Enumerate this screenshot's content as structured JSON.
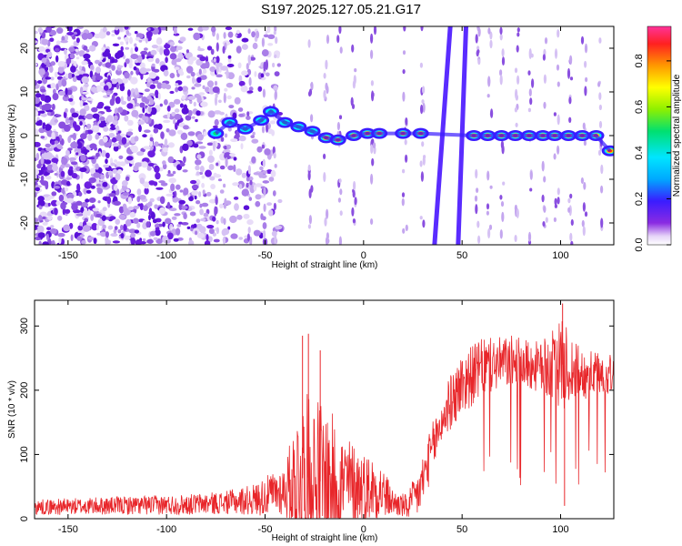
{
  "title": "S197.2025.127.05.21.G17",
  "colors": {
    "snr_line": "#e8262a",
    "background": "#ffffff",
    "axis": "#000000"
  },
  "chart_data": [
    {
      "type": "heatmap",
      "xlabel": "Height of straight line (km)",
      "ylabel": "Frequency (Hz)",
      "xlim": [
        -167,
        127
      ],
      "ylim": [
        -25,
        25
      ],
      "x_ticks": [
        "-150",
        "-100",
        "-50",
        "0",
        "50",
        "100"
      ],
      "y_ticks": [
        "-20",
        "-10",
        "0",
        "10",
        "20"
      ],
      "colorbar": {
        "label": "Normalized spectral amplitude",
        "range": [
          0,
          0.95
        ],
        "ticks": [
          "0.0",
          "0.2",
          "0.4",
          "0.6",
          "0.8"
        ],
        "colormap": "rainbow"
      },
      "main_ridge": [
        {
          "x": -75,
          "f": 0.5
        },
        {
          "x": -68,
          "f": 3
        },
        {
          "x": -60,
          "f": 1.5
        },
        {
          "x": -52,
          "f": 3.5
        },
        {
          "x": -47,
          "f": 5.5
        },
        {
          "x": -40,
          "f": 3
        },
        {
          "x": -33,
          "f": 2
        },
        {
          "x": -26,
          "f": 1
        },
        {
          "x": -19,
          "f": -0.5
        },
        {
          "x": -13,
          "f": -1
        },
        {
          "x": -5,
          "f": 0
        },
        {
          "x": 2,
          "f": 0.5
        },
        {
          "x": 8,
          "f": 0.5
        },
        {
          "x": 20,
          "f": 0.5
        },
        {
          "x": 29,
          "f": 0.5
        },
        {
          "x": 56,
          "f": 0
        },
        {
          "x": 63,
          "f": 0
        },
        {
          "x": 70,
          "f": 0
        },
        {
          "x": 77,
          "f": 0
        },
        {
          "x": 84,
          "f": 0
        },
        {
          "x": 91,
          "f": 0
        },
        {
          "x": 97,
          "f": 0
        },
        {
          "x": 104,
          "f": 0
        },
        {
          "x": 111,
          "f": 0
        },
        {
          "x": 118,
          "f": 0
        },
        {
          "x": 125,
          "f": -3.5
        }
      ],
      "diagonal_streaks": [
        {
          "from": [
            36,
            -25
          ],
          "to": [
            44,
            25
          ]
        },
        {
          "from": [
            48,
            -25
          ],
          "to": [
            52,
            25
          ]
        }
      ]
    },
    {
      "type": "line",
      "xlabel": "Height of straight line (km)",
      "ylabel": "SNR (10 * v/v)",
      "xlim": [
        -167,
        127
      ],
      "ylim": [
        0,
        340
      ],
      "x_ticks": [
        "-150",
        "-100",
        "-50",
        "0",
        "50",
        "100"
      ],
      "y_ticks": [
        "0",
        "100",
        "200",
        "300"
      ],
      "series": [
        {
          "envelope": [
            {
              "x": -167,
              "base": 18,
              "amp": 12
            },
            {
              "x": -130,
              "base": 20,
              "amp": 14
            },
            {
              "x": -90,
              "base": 22,
              "amp": 16
            },
            {
              "x": -70,
              "base": 25,
              "amp": 18
            },
            {
              "x": -55,
              "base": 30,
              "amp": 25
            },
            {
              "x": -40,
              "base": 45,
              "amp": 40
            },
            {
              "x": -32,
              "base": 70,
              "amp": 120
            },
            {
              "x": -25,
              "base": 60,
              "amp": 140
            },
            {
              "x": -18,
              "base": 55,
              "amp": 120
            },
            {
              "x": -10,
              "base": 55,
              "amp": 80
            },
            {
              "x": 0,
              "base": 50,
              "amp": 55
            },
            {
              "x": 8,
              "base": 45,
              "amp": 50
            },
            {
              "x": 15,
              "base": 25,
              "amp": 20
            },
            {
              "x": 22,
              "base": 18,
              "amp": 20
            },
            {
              "x": 28,
              "base": 40,
              "amp": 40
            },
            {
              "x": 35,
              "base": 110,
              "amp": 40
            },
            {
              "x": 42,
              "base": 170,
              "amp": 40
            },
            {
              "x": 50,
              "base": 210,
              "amp": 50
            },
            {
              "x": 60,
              "base": 235,
              "amp": 45
            },
            {
              "x": 75,
              "base": 245,
              "amp": 40
            },
            {
              "x": 90,
              "base": 235,
              "amp": 40
            },
            {
              "x": 101,
              "base": 240,
              "amp": 70
            },
            {
              "x": 110,
              "base": 225,
              "amp": 40
            },
            {
              "x": 127,
              "base": 225,
              "amp": 30
            }
          ],
          "notable_values": [
            {
              "x": -31,
              "y": 285
            },
            {
              "x": -28,
              "y": 288
            },
            {
              "x": -22,
              "y": 262
            },
            {
              "x": 101,
              "y": 335
            },
            {
              "x": 102,
              "y": 20
            }
          ]
        }
      ]
    }
  ]
}
